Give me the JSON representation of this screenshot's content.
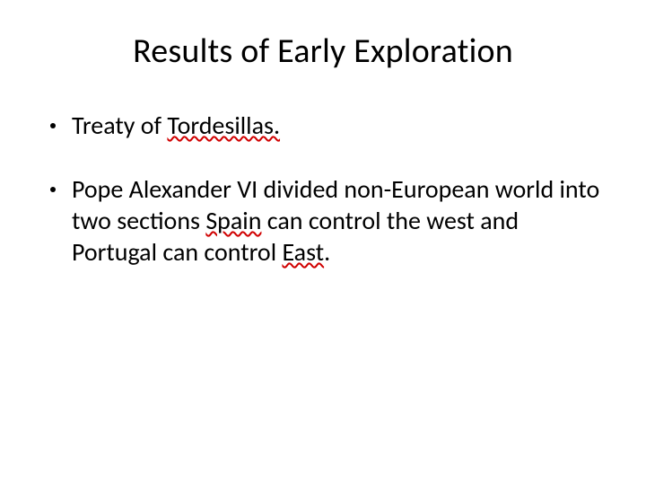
{
  "slide": {
    "title": "Results of Early Exploration",
    "title_fontsize": 38,
    "title_color": "#000000",
    "background_color": "#ffffff",
    "body_fontsize": 28,
    "body_color": "#000000",
    "squiggle_color": "#d00000",
    "bullets": [
      {
        "runs": [
          {
            "text": "Treaty of ",
            "squiggle": false
          },
          {
            "text": "Tordesillas.",
            "squiggle": true
          }
        ]
      },
      {
        "runs": [
          {
            "text": "Pope Alexander VI divided non-European world into two sections ",
            "squiggle": false
          },
          {
            "text": "Spain",
            "squiggle": true
          },
          {
            "text": " can control the west and Portugal can control ",
            "squiggle": false
          },
          {
            "text": "East",
            "squiggle": true
          },
          {
            "text": ".",
            "squiggle": false
          }
        ]
      }
    ]
  }
}
